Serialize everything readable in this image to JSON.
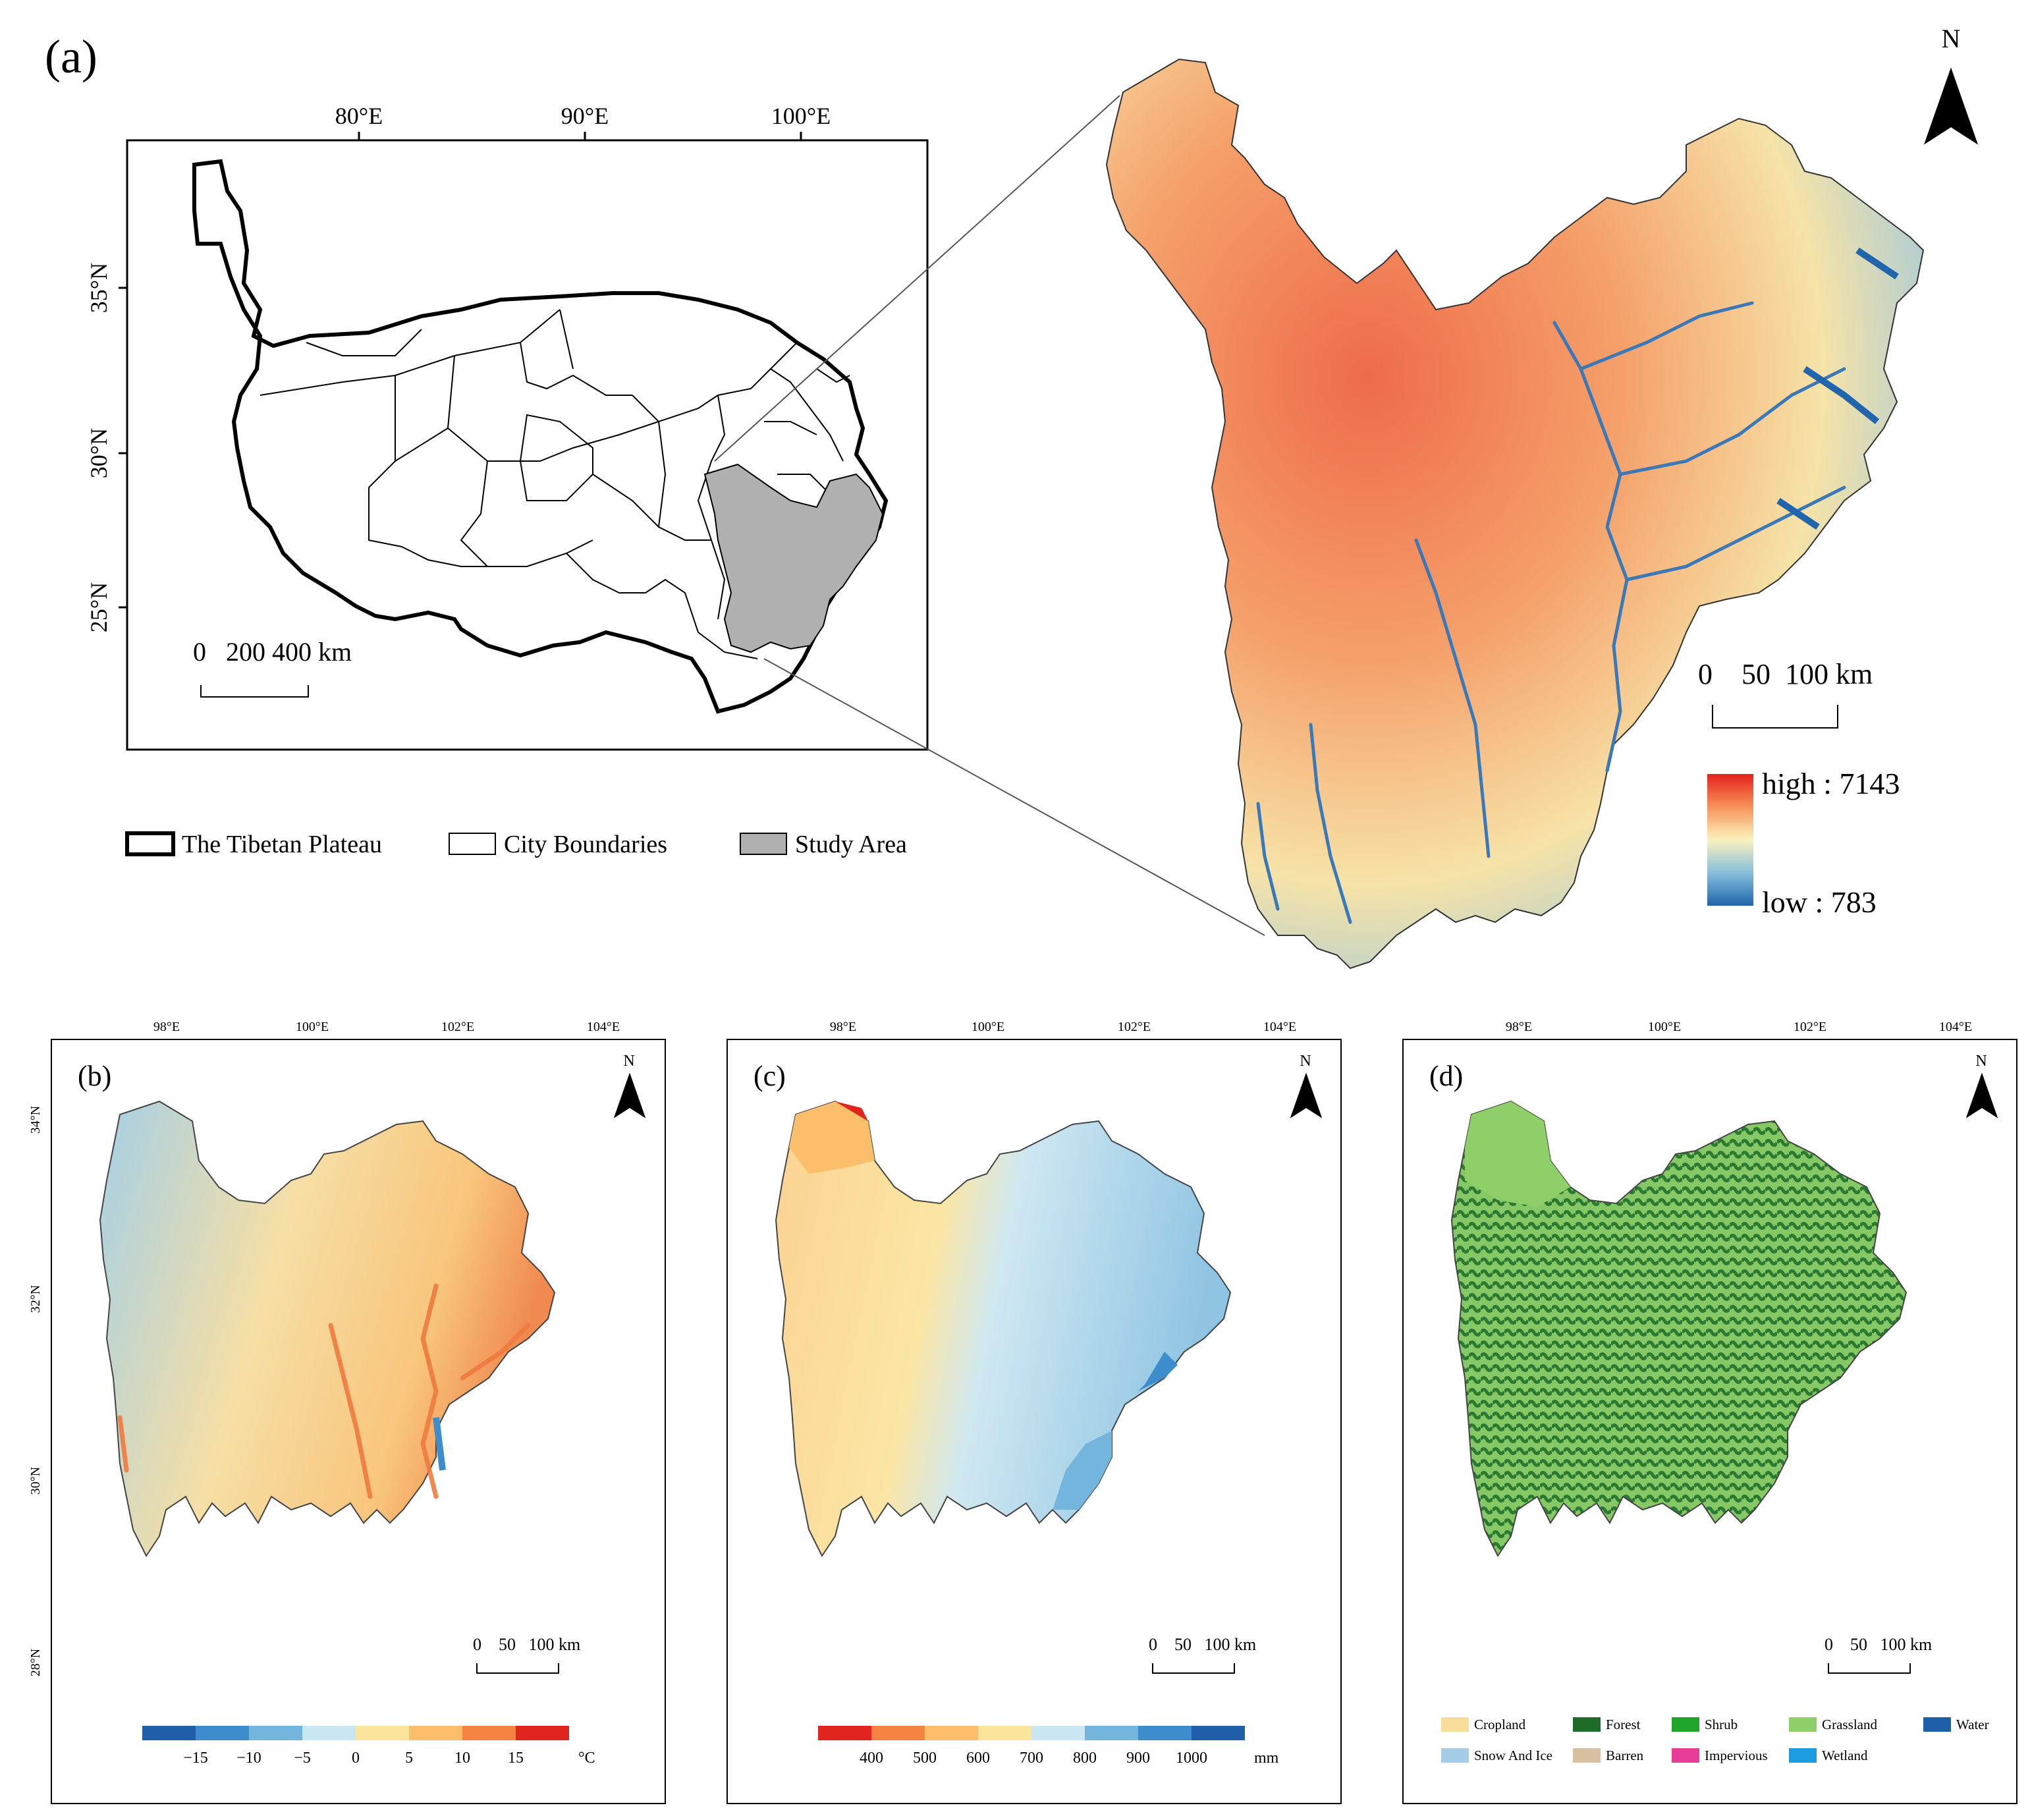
{
  "panel_a": {
    "label": "(a)",
    "lon_ticks": [
      "80°E",
      "90°E",
      "100°E"
    ],
    "lat_ticks": [
      "35°N",
      "30°N",
      "25°N"
    ],
    "scale_bar": "0   200 400 km",
    "legend": {
      "plateau": "The Tibetan Plateau",
      "city": "City Boundaries",
      "study": "Study Area"
    },
    "dem": {
      "north": "N",
      "scale_bar": "0    50  100 km",
      "high_label": "high : 7143",
      "low_label": "low : 783",
      "high_value": 7143,
      "low_value": 783
    }
  },
  "panel_b": {
    "label": "(b)",
    "north": "N",
    "lon_ticks": [
      "98°E",
      "100°E",
      "102°E",
      "104°E"
    ],
    "lat_ticks": [
      "34°N",
      "32°N",
      "30°N",
      "28°N"
    ],
    "scale_bar": "0    50   100 km",
    "legend_ticks": [
      "−15",
      "−10",
      "−5",
      "0",
      "5",
      "10",
      "15"
    ],
    "legend_unit": "°C",
    "legend_colors": [
      "#1f5ea8",
      "#3d8ccb",
      "#74b5dd",
      "#c9e6f2",
      "#fbe49c",
      "#fbbf6b",
      "#f58341",
      "#e2241f"
    ]
  },
  "panel_c": {
    "label": "(c)",
    "north": "N",
    "lon_ticks": [
      "98°E",
      "100°E",
      "102°E",
      "104°E"
    ],
    "scale_bar": "0    50   100 km",
    "legend_ticks": [
      "400",
      "500",
      "600",
      "700",
      "800",
      "900",
      "1000"
    ],
    "legend_unit": "mm",
    "legend_colors": [
      "#e2241f",
      "#f58341",
      "#fbbf6b",
      "#fbe49c",
      "#c9e6f2",
      "#74b5dd",
      "#3d8ccb",
      "#1f5ea8"
    ]
  },
  "panel_d": {
    "label": "(d)",
    "north": "N",
    "lon_ticks": [
      "98°E",
      "100°E",
      "102°E",
      "104°E"
    ],
    "scale_bar": "0    50   100 km",
    "classes": [
      {
        "name": "Cropland",
        "color": "#f7dc9c"
      },
      {
        "name": "Forest",
        "color": "#1e6b2a"
      },
      {
        "name": "Shrub",
        "color": "#1ea52a"
      },
      {
        "name": "Grassland",
        "color": "#8fcf6a"
      },
      {
        "name": "Water",
        "color": "#1d5fa8"
      },
      {
        "name": "Snow And Ice",
        "color": "#a6cde8"
      },
      {
        "name": "Barren",
        "color": "#d8c0a0"
      },
      {
        "name": "Impervious",
        "color": "#e83c96"
      },
      {
        "name": "Wetland",
        "color": "#1d9be0"
      }
    ]
  }
}
